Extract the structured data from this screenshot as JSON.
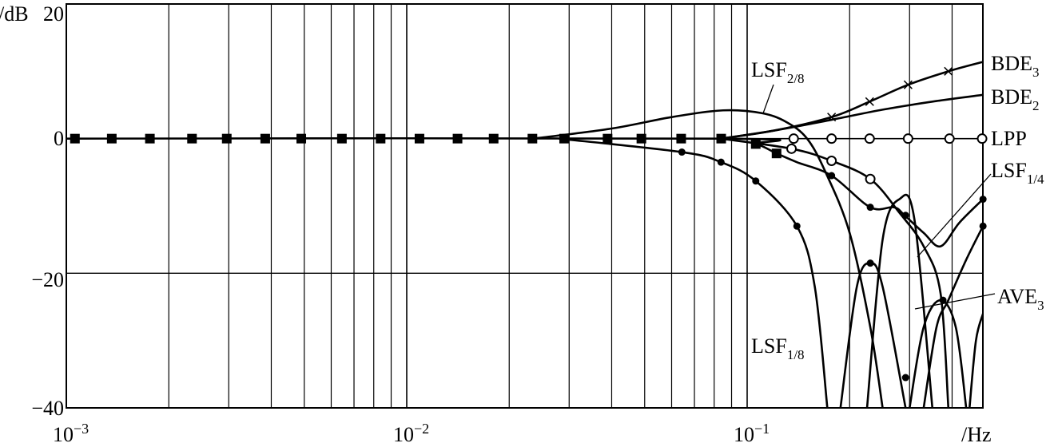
{
  "chart_data": {
    "type": "line",
    "title": "",
    "xlabel": "/Hz",
    "ylabel": "/dB",
    "xscale": "log",
    "xlim": [
      0.001,
      0.5
    ],
    "ylim": [
      -40,
      20
    ],
    "grid": true,
    "x_ticks": [
      {
        "base": "10",
        "exp": "−3",
        "value": 0.001
      },
      {
        "base": "10",
        "exp": "−2",
        "value": 0.01
      },
      {
        "base": "10",
        "exp": "−1",
        "value": 0.1
      }
    ],
    "y_ticks": [
      {
        "label": "20",
        "value": 20
      },
      {
        "label": "0",
        "value": 0
      },
      {
        "label": "−20",
        "value": -20
      },
      {
        "label": "−40",
        "value": -40
      }
    ],
    "series": [
      {
        "name": "LPP",
        "main": "LPP",
        "sub": "",
        "marker": "open-circle",
        "segments": [
          [
            [
              0.001,
              0
            ],
            [
              0.5,
              0
            ]
          ]
        ],
        "markers": [
          [
            0.137,
            0
          ],
          [
            0.177,
            0
          ],
          [
            0.229,
            0
          ],
          [
            0.297,
            0
          ],
          [
            0.393,
            0
          ],
          [
            0.49,
            0
          ]
        ]
      },
      {
        "name": "BDE3",
        "main": "BDE",
        "sub": "3",
        "marker": "cross",
        "segments": [
          [
            [
              0.0838,
              0
            ],
            [
              0.12,
              1.2
            ],
            [
              0.177,
              3.2
            ],
            [
              0.229,
              5.5
            ],
            [
              0.297,
              8
            ],
            [
              0.39,
              10
            ],
            [
              0.493,
              11.4
            ]
          ]
        ],
        "markers": [
          [
            0.177,
            3.2
          ],
          [
            0.229,
            5.5
          ],
          [
            0.297,
            8
          ],
          [
            0.39,
            10
          ]
        ]
      },
      {
        "name": "BDE2",
        "main": "BDE",
        "sub": "2",
        "marker": "none",
        "segments": [
          [
            [
              0.0838,
              0
            ],
            [
              0.12,
              1.2
            ],
            [
              0.177,
              2.8
            ],
            [
              0.25,
              4.3
            ],
            [
              0.35,
              5.5
            ],
            [
              0.493,
              6.5
            ]
          ]
        ],
        "markers": []
      },
      {
        "name": "LSF2/8",
        "main": "LSF",
        "sub": "2/8",
        "marker": "none",
        "segments": [
          [
            [
              0.0235,
              0
            ],
            [
              0.04,
              1.5
            ],
            [
              0.06,
              3.2
            ],
            [
              0.085,
              4.2
            ],
            [
              0.11,
              3.8
            ],
            [
              0.13,
              2.5
            ],
            [
              0.15,
              0
            ],
            [
              0.17,
              -5
            ],
            [
              0.2,
              -14
            ],
            [
              0.23,
              -28
            ],
            [
              0.25,
              -40
            ]
          ],
          [
            [
              0.225,
              -40
            ],
            [
              0.25,
              -15
            ],
            [
              0.28,
              -9
            ],
            [
              0.31,
              -12
            ],
            [
              0.35,
              -40
            ]
          ]
        ],
        "markers": []
      },
      {
        "name": "LSF1/4",
        "main": "LSF",
        "sub": "1/4",
        "marker": "square",
        "segments": [
          [
            [
              0.001,
              0
            ],
            [
              0.0838,
              0
            ],
            [
              0.106,
              -0.8
            ],
            [
              0.122,
              -2.2
            ],
            [
              0.14,
              -3.5
            ],
            [
              0.177,
              -5.5
            ],
            [
              0.23,
              -10.2
            ],
            [
              0.27,
              -10.2
            ],
            [
              0.29,
              -11.4
            ],
            [
              0.33,
              -14
            ],
            [
              0.37,
              -16
            ],
            [
              0.42,
              -12.5
            ],
            [
              0.493,
              -9
            ]
          ]
        ],
        "markers": [
          [
            0.00106,
            0
          ],
          [
            0.00136,
            0
          ],
          [
            0.00176,
            0
          ],
          [
            0.00234,
            0
          ],
          [
            0.00296,
            0
          ],
          [
            0.00384,
            0
          ],
          [
            0.0049,
            0
          ],
          [
            0.00645,
            0
          ],
          [
            0.00838,
            0
          ],
          [
            0.0109,
            0
          ],
          [
            0.0141,
            0
          ],
          [
            0.018,
            0
          ],
          [
            0.0234,
            0
          ],
          [
            0.029,
            0
          ],
          [
            0.0389,
            0
          ],
          [
            0.0489,
            0
          ],
          [
            0.064,
            0
          ],
          [
            0.0839,
            0
          ],
          [
            0.106,
            -0.8
          ],
          [
            0.122,
            -2.2
          ]
        ],
        "dots": [
          [
            0.177,
            -5.5
          ],
          [
            0.23,
            -10.2
          ],
          [
            0.292,
            -11.4
          ],
          [
            0.493,
            -9
          ]
        ]
      },
      {
        "name": "AVE3",
        "main": "AVE",
        "sub": "3",
        "marker": "open-circle",
        "segments": [
          [
            [
              0.0838,
              0
            ],
            [
              0.135,
              -1.5
            ],
            [
              0.177,
              -3.3
            ],
            [
              0.23,
              -6
            ],
            [
              0.28,
              -11
            ],
            [
              0.33,
              -16
            ],
            [
              0.37,
              -23
            ],
            [
              0.39,
              -40
            ]
          ],
          [
            [
              0.33,
              -40
            ],
            [
              0.36,
              -28
            ],
            [
              0.39,
              -24
            ],
            [
              0.44,
              -18
            ],
            [
              0.493,
              -13
            ]
          ]
        ],
        "markers": [
          [
            0.135,
            -1.5
          ],
          [
            0.177,
            -3.3
          ],
          [
            0.23,
            -6
          ]
        ],
        "dots": [
          [
            0.376,
            -24
          ],
          [
            0.493,
            -13
          ]
        ]
      },
      {
        "name": "LSF1/8",
        "main": "LSF",
        "sub": "1/8",
        "marker": "dot",
        "segments": [
          [
            [
              0.028,
              0
            ],
            [
              0.0643,
              -2
            ],
            [
              0.0838,
              -3.5
            ],
            [
              0.106,
              -6.3
            ],
            [
              0.14,
              -13
            ],
            [
              0.158,
              -22
            ],
            [
              0.172,
              -40
            ]
          ],
          [
            [
              0.188,
              -40
            ],
            [
              0.21,
              -22
            ],
            [
              0.23,
              -18.5
            ],
            [
              0.25,
              -22
            ],
            [
              0.292,
              -40
            ]
          ],
          [
            [
              0.3,
              -40
            ],
            [
              0.33,
              -28
            ],
            [
              0.37,
              -24
            ],
            [
              0.41,
              -28
            ],
            [
              0.44,
              -40
            ]
          ],
          [
            [
              0.45,
              -40
            ],
            [
              0.47,
              -30
            ],
            [
              0.493,
              -26
            ]
          ]
        ],
        "markers": [
          [
            0.0643,
            -2
          ],
          [
            0.0838,
            -3.5
          ],
          [
            0.106,
            -6.3
          ],
          [
            0.14,
            -13
          ],
          [
            0.23,
            -18.5
          ],
          [
            0.292,
            -35.5
          ]
        ]
      }
    ]
  }
}
